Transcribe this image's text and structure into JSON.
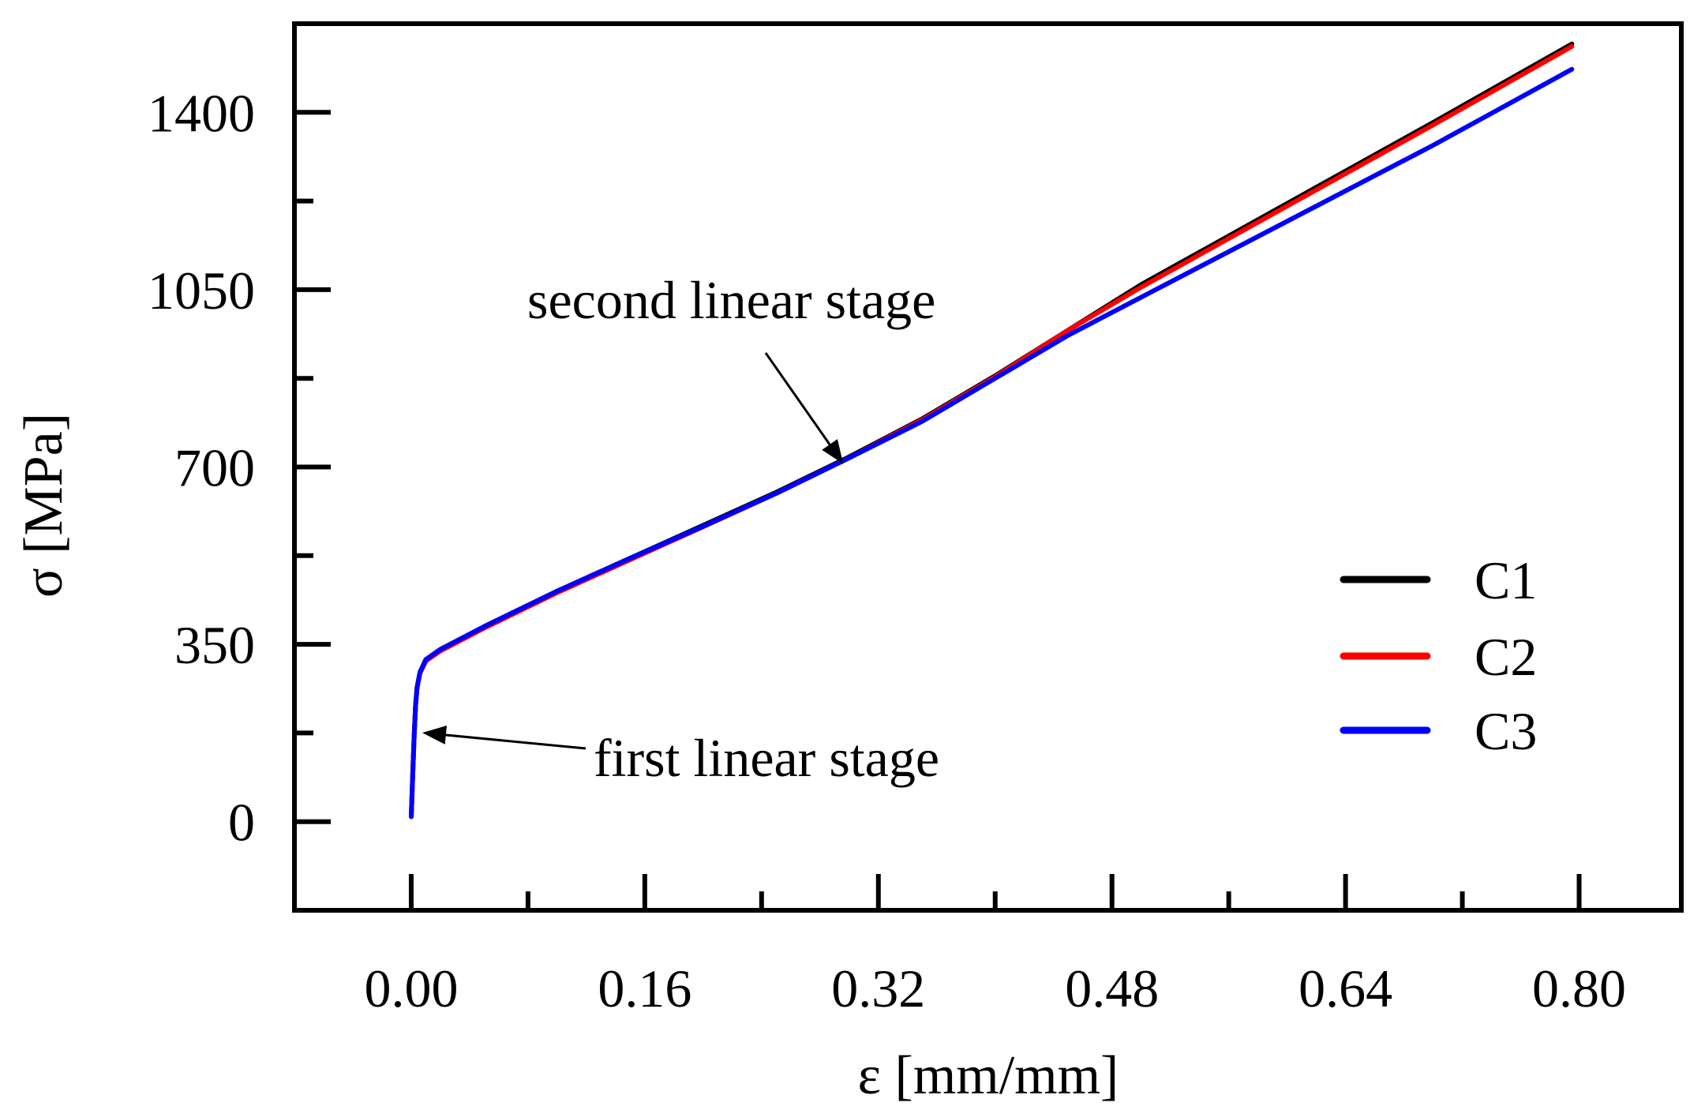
{
  "chart_data": {
    "type": "line",
    "title": "",
    "xlabel": "ε [mm/mm]",
    "ylabel": "σ [MPa]",
    "xlim": [
      -0.08,
      0.87
    ],
    "ylim": [
      -175,
      1575
    ],
    "xticks": [
      0.0,
      0.16,
      0.32,
      0.48,
      0.64,
      0.8
    ],
    "xtick_labels": [
      "0.00",
      "0.16",
      "0.32",
      "0.48",
      "0.64",
      "0.80"
    ],
    "xminor": [
      0.08,
      0.24,
      0.4,
      0.56,
      0.72
    ],
    "yticks": [
      0,
      350,
      700,
      1050,
      1400
    ],
    "ytick_labels": [
      "0",
      "350",
      "700",
      "1050",
      "1400"
    ],
    "yminor": [
      175,
      525,
      875,
      1225
    ],
    "grid": false,
    "legend_position": "bottom-right",
    "series": [
      {
        "name": "C1",
        "color": "#000000",
        "x": [
          0.0,
          0.001,
          0.002,
          0.003,
          0.004,
          0.006,
          0.01,
          0.02,
          0.05,
          0.1,
          0.15,
          0.2,
          0.25,
          0.3,
          0.35,
          0.4,
          0.45,
          0.5,
          0.6,
          0.7,
          0.795
        ],
        "y": [
          10,
          90,
          170,
          230,
          265,
          295,
          320,
          340,
          385,
          455,
          520,
          585,
          650,
          720,
          795,
          880,
          970,
          1060,
          1220,
          1380,
          1535
        ]
      },
      {
        "name": "C2",
        "color": "#ff0000",
        "x": [
          0.0,
          0.001,
          0.002,
          0.003,
          0.004,
          0.006,
          0.01,
          0.02,
          0.05,
          0.1,
          0.15,
          0.2,
          0.25,
          0.3,
          0.35,
          0.4,
          0.45,
          0.5,
          0.6,
          0.7,
          0.795
        ],
        "y": [
          10,
          90,
          170,
          230,
          265,
          293,
          317,
          337,
          382,
          452,
          517,
          582,
          648,
          718,
          793,
          878,
          970,
          1055,
          1215,
          1375,
          1530
        ]
      },
      {
        "name": "C3",
        "color": "#0000ff",
        "x": [
          0.0,
          0.001,
          0.002,
          0.003,
          0.004,
          0.006,
          0.01,
          0.02,
          0.05,
          0.1,
          0.15,
          0.2,
          0.25,
          0.3,
          0.35,
          0.4,
          0.45,
          0.5,
          0.6,
          0.7,
          0.795
        ],
        "y": [
          10,
          90,
          170,
          230,
          265,
          295,
          320,
          340,
          385,
          455,
          520,
          583,
          648,
          718,
          790,
          875,
          960,
          1035,
          1185,
          1335,
          1485
        ]
      }
    ],
    "annotations": [
      {
        "text": "second linear stage",
        "arrow_to": [
          0.295,
          710
        ]
      },
      {
        "text": "first linear stage",
        "arrow_to": [
          0.006,
          175
        ]
      }
    ]
  }
}
